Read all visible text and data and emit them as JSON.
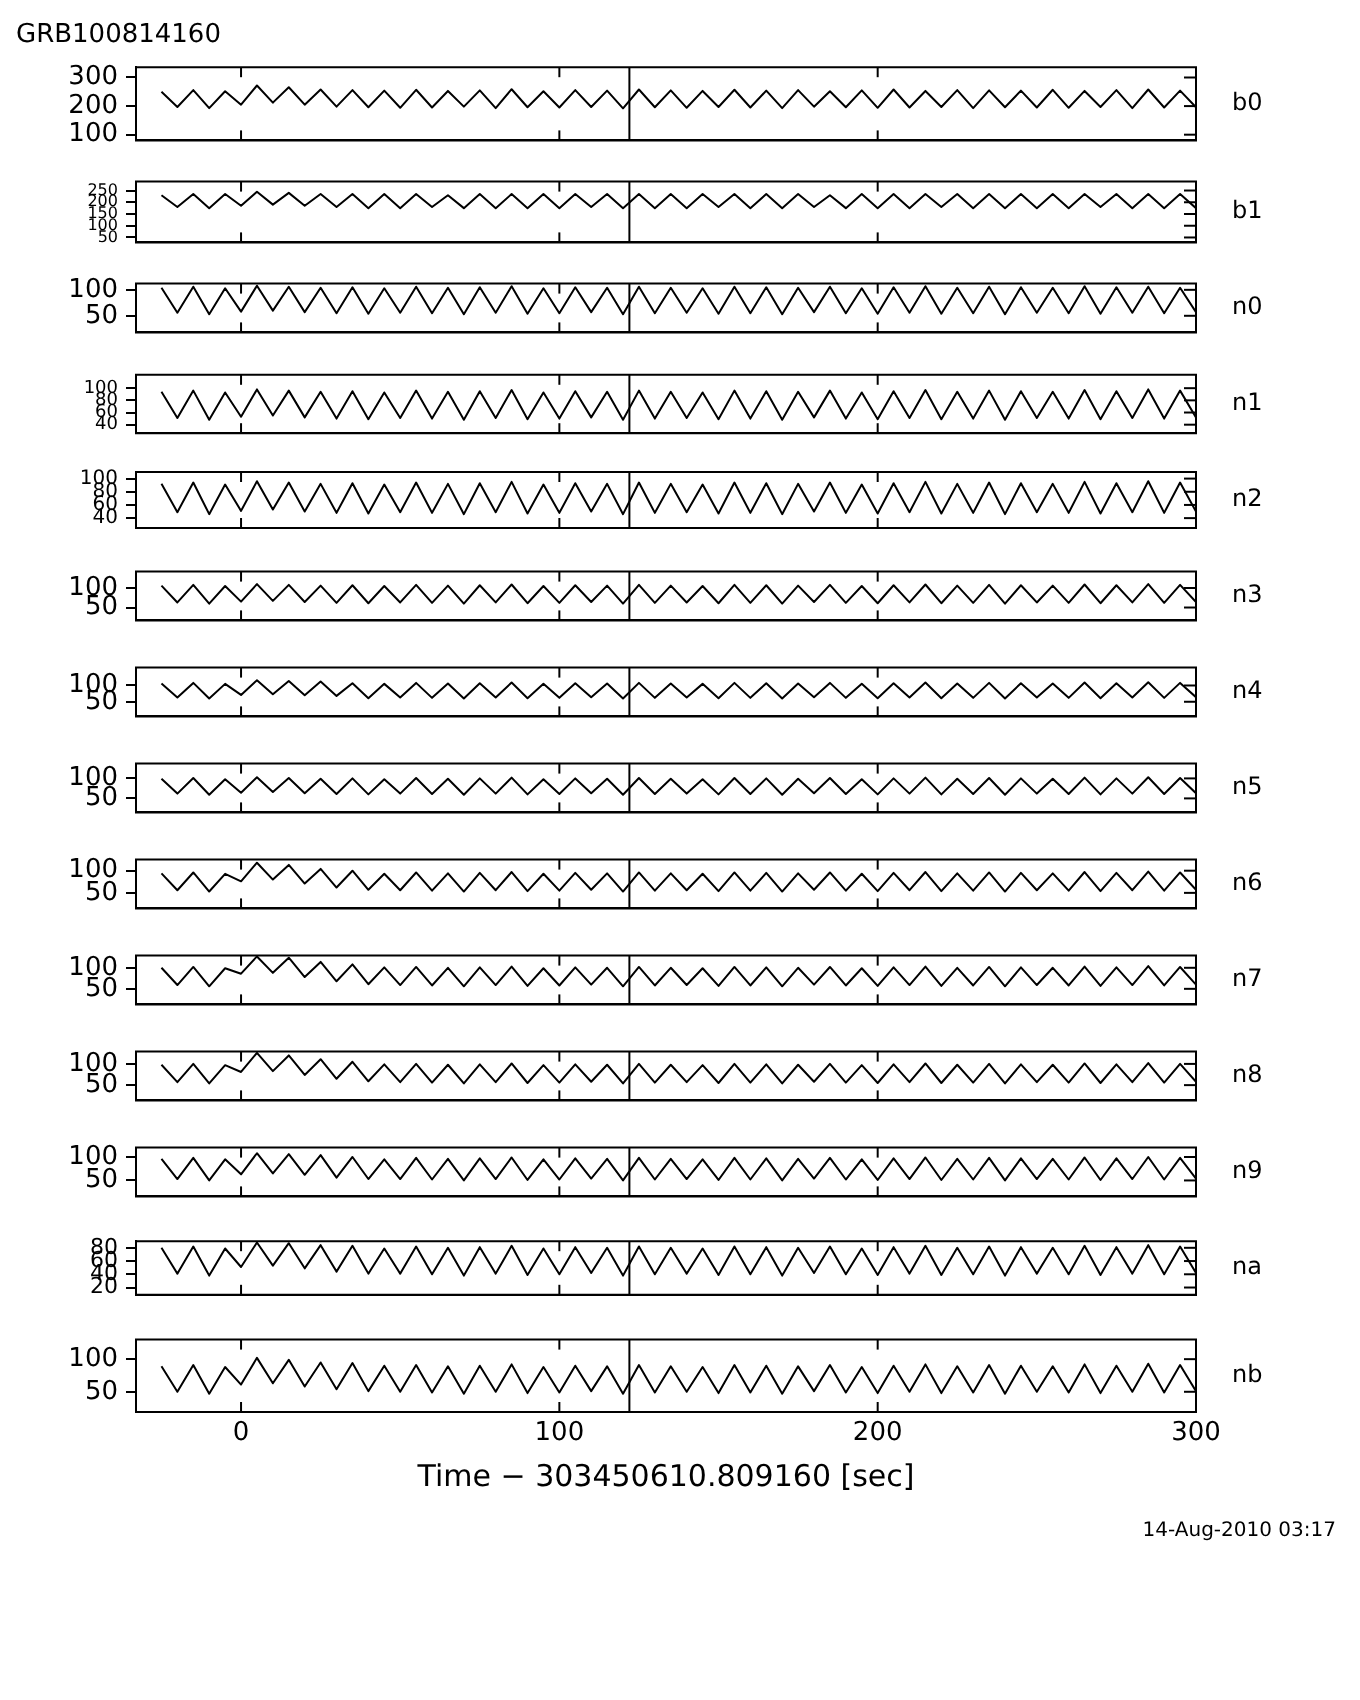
{
  "chart_data": [
    {
      "type": "line",
      "title": "GRB100814160",
      "x": [
        -25,
        -20,
        -15,
        -10,
        -5,
        0,
        5,
        10,
        15,
        20,
        25,
        30,
        35,
        40,
        45,
        50,
        55,
        60,
        65,
        70,
        75,
        80,
        85,
        90,
        95,
        100,
        105,
        110,
        115,
        120,
        125,
        130,
        135,
        140,
        145,
        150,
        155,
        160,
        165,
        170,
        175,
        180,
        185,
        190,
        195,
        200,
        205,
        210,
        215,
        220,
        225,
        230,
        235,
        240,
        245,
        250,
        255,
        260,
        265,
        270,
        275,
        280,
        285,
        290,
        295,
        300
      ],
      "xlim": [
        -33,
        300
      ],
      "xticks": [
        0,
        100,
        200,
        300
      ],
      "ylim": [
        80,
        336
      ],
      "yticks": [
        100,
        200,
        300
      ],
      "tick_labels": "y",
      "grid": false,
      "legend": "right",
      "marker": "none",
      "ref_lines": [
        {
          "axis": "x",
          "value": 122
        }
      ],
      "series": [
        {
          "name": "b0",
          "color": "#000000",
          "values": [
            250,
            197,
            256,
            193,
            252,
            205,
            272,
            212,
            266,
            205,
            258,
            198,
            256,
            196,
            254,
            194,
            257,
            195,
            253,
            198,
            255,
            193,
            259,
            196,
            252,
            195,
            256,
            197,
            254,
            192,
            258,
            196,
            255,
            194,
            253,
            197,
            257,
            195,
            254,
            193,
            256,
            198,
            252,
            196,
            255,
            194,
            258,
            195,
            253,
            197,
            256,
            193,
            255,
            196,
            254,
            195,
            257,
            194,
            253,
            197,
            256,
            193,
            258,
            195,
            254,
            196
          ]
        }
      ]
    },
    {
      "type": "line",
      "x": [
        -25,
        -20,
        -15,
        -10,
        -5,
        0,
        5,
        10,
        15,
        20,
        25,
        30,
        35,
        40,
        45,
        50,
        55,
        60,
        65,
        70,
        75,
        80,
        85,
        90,
        95,
        100,
        105,
        110,
        115,
        120,
        125,
        130,
        135,
        140,
        145,
        150,
        155,
        160,
        165,
        170,
        175,
        180,
        185,
        190,
        195,
        200,
        205,
        210,
        215,
        220,
        225,
        230,
        235,
        240,
        245,
        250,
        255,
        260,
        265,
        270,
        275,
        280,
        285,
        290,
        295,
        300
      ],
      "xlim": [
        -33,
        300
      ],
      "xticks": [
        0,
        100,
        200,
        300
      ],
      "ylim": [
        29,
        288
      ],
      "yticks": [
        50,
        100,
        150,
        200,
        250
      ],
      "tick_labels": "y",
      "grid": false,
      "legend": "right",
      "marker": "none",
      "ref_lines": [
        {
          "axis": "x",
          "value": 122
        }
      ],
      "series": [
        {
          "name": "b1",
          "color": "#000000",
          "values": [
            230,
            180,
            235,
            175,
            235,
            185,
            245,
            190,
            240,
            185,
            235,
            180,
            235,
            175,
            235,
            175,
            235,
            180,
            230,
            175,
            235,
            175,
            235,
            175,
            235,
            175,
            235,
            180,
            235,
            175,
            235,
            175,
            235,
            175,
            235,
            180,
            235,
            175,
            235,
            175,
            235,
            180,
            230,
            175,
            235,
            175,
            235,
            175,
            235,
            180,
            235,
            175,
            235,
            175,
            235,
            175,
            235,
            175,
            235,
            180,
            235,
            175,
            235,
            175,
            235,
            175
          ]
        }
      ]
    },
    {
      "type": "line",
      "x": [
        -25,
        -20,
        -15,
        -10,
        -5,
        0,
        5,
        10,
        15,
        20,
        25,
        30,
        35,
        40,
        45,
        50,
        55,
        60,
        65,
        70,
        75,
        80,
        85,
        90,
        95,
        100,
        105,
        110,
        115,
        120,
        125,
        130,
        135,
        140,
        145,
        150,
        155,
        160,
        165,
        170,
        175,
        180,
        185,
        190,
        195,
        200,
        205,
        210,
        215,
        220,
        225,
        230,
        235,
        240,
        245,
        250,
        255,
        260,
        265,
        270,
        275,
        280,
        285,
        290,
        295,
        300
      ],
      "xlim": [
        -33,
        300
      ],
      "xticks": [
        0,
        100,
        200,
        300
      ],
      "ylim": [
        18,
        112
      ],
      "yticks": [
        50,
        100
      ],
      "tick_labels": "y",
      "grid": false,
      "legend": "right",
      "marker": "none",
      "ref_lines": [
        {
          "axis": "x",
          "value": 122
        }
      ],
      "series": [
        {
          "name": "n0",
          "color": "#000000",
          "values": [
            104,
            56,
            106,
            53,
            103,
            58,
            108,
            60,
            106,
            57,
            104,
            55,
            105,
            54,
            103,
            56,
            106,
            55,
            104,
            53,
            105,
            56,
            107,
            54,
            103,
            55,
            105,
            57,
            104,
            53,
            106,
            55,
            104,
            56,
            103,
            54,
            106,
            55,
            105,
            53,
            104,
            57,
            106,
            55,
            103,
            54,
            105,
            56,
            107,
            54,
            104,
            55,
            106,
            53,
            105,
            56,
            104,
            55,
            107,
            54,
            105,
            56,
            106,
            55,
            104,
            57
          ]
        }
      ]
    },
    {
      "type": "line",
      "x": [
        -25,
        -20,
        -15,
        -10,
        -5,
        0,
        5,
        10,
        15,
        20,
        25,
        30,
        35,
        40,
        45,
        50,
        55,
        60,
        65,
        70,
        75,
        80,
        85,
        90,
        95,
        100,
        105,
        110,
        115,
        120,
        125,
        130,
        135,
        140,
        145,
        150,
        155,
        160,
        165,
        170,
        175,
        180,
        185,
        190,
        195,
        200,
        205,
        210,
        215,
        220,
        225,
        230,
        235,
        240,
        245,
        250,
        255,
        260,
        265,
        270,
        275,
        280,
        285,
        290,
        295,
        300
      ],
      "xlim": [
        -33,
        300
      ],
      "xticks": [
        0,
        100,
        200,
        300
      ],
      "ylim": [
        26,
        122
      ],
      "yticks": [
        40,
        60,
        80,
        100
      ],
      "tick_labels": "y",
      "grid": false,
      "legend": "right",
      "marker": "none",
      "ref_lines": [
        {
          "axis": "x",
          "value": 122
        }
      ],
      "series": [
        {
          "name": "n1",
          "color": "#000000",
          "values": [
            94,
            51,
            96,
            48,
            93,
            53,
            98,
            55,
            96,
            52,
            94,
            50,
            95,
            49,
            93,
            51,
            96,
            50,
            94,
            48,
            95,
            51,
            97,
            49,
            93,
            50,
            95,
            52,
            94,
            48,
            96,
            50,
            94,
            51,
            93,
            49,
            96,
            50,
            95,
            48,
            94,
            52,
            96,
            50,
            93,
            49,
            95,
            51,
            97,
            49,
            94,
            50,
            96,
            48,
            95,
            51,
            94,
            50,
            97,
            49,
            95,
            51,
            98,
            50,
            96,
            52
          ]
        }
      ]
    },
    {
      "type": "line",
      "x": [
        -25,
        -20,
        -15,
        -10,
        -5,
        0,
        5,
        10,
        15,
        20,
        25,
        30,
        35,
        40,
        45,
        50,
        55,
        60,
        65,
        70,
        75,
        80,
        85,
        90,
        95,
        100,
        105,
        110,
        115,
        120,
        125,
        130,
        135,
        140,
        145,
        150,
        155,
        160,
        165,
        170,
        175,
        180,
        185,
        190,
        195,
        200,
        205,
        210,
        215,
        220,
        225,
        230,
        235,
        240,
        245,
        250,
        255,
        260,
        265,
        270,
        275,
        280,
        285,
        290,
        295,
        300
      ],
      "xlim": [
        -33,
        300
      ],
      "xticks": [
        0,
        100,
        200,
        300
      ],
      "ylim": [
        25,
        110
      ],
      "yticks": [
        40,
        60,
        80,
        100
      ],
      "tick_labels": "y",
      "grid": false,
      "legend": "right",
      "marker": "none",
      "ref_lines": [
        {
          "axis": "x",
          "value": 122
        }
      ],
      "series": [
        {
          "name": "n2",
          "color": "#000000",
          "values": [
            92,
            49,
            94,
            46,
            91,
            51,
            96,
            53,
            94,
            50,
            92,
            48,
            93,
            47,
            91,
            49,
            94,
            48,
            92,
            46,
            93,
            49,
            95,
            47,
            91,
            48,
            93,
            50,
            92,
            46,
            94,
            48,
            92,
            49,
            91,
            47,
            94,
            48,
            93,
            46,
            92,
            50,
            94,
            48,
            91,
            47,
            93,
            49,
            95,
            47,
            92,
            48,
            94,
            46,
            93,
            49,
            92,
            48,
            95,
            47,
            93,
            49,
            96,
            48,
            94,
            50
          ]
        }
      ]
    },
    {
      "type": "line",
      "x": [
        -25,
        -20,
        -15,
        -10,
        -5,
        0,
        5,
        10,
        15,
        20,
        25,
        30,
        35,
        40,
        45,
        50,
        55,
        60,
        65,
        70,
        75,
        80,
        85,
        90,
        95,
        100,
        105,
        110,
        115,
        120,
        125,
        130,
        135,
        140,
        145,
        150,
        155,
        160,
        165,
        170,
        175,
        180,
        185,
        190,
        195,
        200,
        205,
        210,
        215,
        220,
        225,
        230,
        235,
        240,
        245,
        250,
        255,
        260,
        265,
        270,
        275,
        280,
        285,
        290,
        295,
        300
      ],
      "xlim": [
        -33,
        300
      ],
      "xticks": [
        0,
        100,
        200,
        300
      ],
      "ylim": [
        17,
        142
      ],
      "yticks": [
        50,
        100
      ],
      "tick_labels": "y",
      "grid": false,
      "legend": "right",
      "marker": "none",
      "ref_lines": [
        {
          "axis": "x",
          "value": 122
        }
      ],
      "series": [
        {
          "name": "n3",
          "color": "#000000",
          "values": [
            106,
            63,
            108,
            60,
            105,
            65,
            110,
            67,
            108,
            64,
            106,
            62,
            107,
            61,
            105,
            63,
            108,
            62,
            106,
            60,
            107,
            63,
            109,
            61,
            105,
            62,
            107,
            64,
            106,
            60,
            108,
            62,
            106,
            63,
            105,
            61,
            108,
            62,
            107,
            60,
            106,
            64,
            108,
            62,
            105,
            61,
            107,
            63,
            109,
            61,
            106,
            62,
            108,
            60,
            107,
            63,
            106,
            62,
            109,
            61,
            107,
            63,
            110,
            62,
            108,
            64
          ]
        }
      ]
    },
    {
      "type": "line",
      "x": [
        -25,
        -20,
        -15,
        -10,
        -5,
        0,
        5,
        10,
        15,
        20,
        25,
        30,
        35,
        40,
        45,
        50,
        55,
        60,
        65,
        70,
        75,
        80,
        85,
        90,
        95,
        100,
        105,
        110,
        115,
        120,
        125,
        130,
        135,
        140,
        145,
        150,
        155,
        160,
        165,
        170,
        175,
        180,
        185,
        190,
        195,
        200,
        205,
        210,
        215,
        220,
        225,
        230,
        235,
        240,
        245,
        250,
        255,
        260,
        265,
        270,
        275,
        280,
        285,
        290,
        295,
        300
      ],
      "xlim": [
        -33,
        300
      ],
      "xticks": [
        0,
        100,
        200,
        300
      ],
      "ylim": [
        5,
        155
      ],
      "yticks": [
        50,
        100
      ],
      "tick_labels": "y",
      "grid": false,
      "legend": "right",
      "marker": "none",
      "ref_lines": [
        {
          "axis": "x",
          "value": 122
        }
      ],
      "series": [
        {
          "name": "n4",
          "color": "#000000",
          "values": [
            106,
            63,
            108,
            60,
            105,
            71,
            116,
            73,
            114,
            70,
            112,
            68,
            107,
            61,
            105,
            63,
            108,
            62,
            106,
            60,
            107,
            63,
            109,
            61,
            105,
            62,
            107,
            64,
            106,
            60,
            108,
            62,
            106,
            63,
            105,
            61,
            108,
            62,
            107,
            60,
            106,
            64,
            108,
            62,
            105,
            61,
            107,
            63,
            109,
            61,
            106,
            62,
            108,
            60,
            107,
            63,
            106,
            62,
            109,
            61,
            107,
            63,
            110,
            62,
            108,
            64
          ]
        }
      ]
    },
    {
      "type": "line",
      "x": [
        -25,
        -20,
        -15,
        -10,
        -5,
        0,
        5,
        10,
        15,
        20,
        25,
        30,
        35,
        40,
        45,
        50,
        55,
        60,
        65,
        70,
        75,
        80,
        85,
        90,
        95,
        100,
        105,
        110,
        115,
        120,
        125,
        130,
        135,
        140,
        145,
        150,
        155,
        160,
        165,
        170,
        175,
        180,
        185,
        190,
        195,
        200,
        205,
        210,
        215,
        220,
        225,
        230,
        235,
        240,
        245,
        250,
        255,
        260,
        265,
        270,
        275,
        280,
        285,
        290,
        295,
        300
      ],
      "xlim": [
        -33,
        300
      ],
      "xticks": [
        0,
        100,
        200,
        300
      ],
      "ylim": [
        15,
        137
      ],
      "yticks": [
        50,
        100
      ],
      "tick_labels": "y",
      "grid": false,
      "legend": "right",
      "marker": "none",
      "ref_lines": [
        {
          "axis": "x",
          "value": 122
        }
      ],
      "series": [
        {
          "name": "n5",
          "color": "#000000",
          "values": [
            99,
            62,
            101,
            59,
            98,
            64,
            103,
            66,
            101,
            63,
            99,
            61,
            100,
            60,
            98,
            62,
            101,
            61,
            99,
            59,
            100,
            62,
            102,
            60,
            98,
            61,
            100,
            63,
            99,
            59,
            101,
            61,
            99,
            62,
            98,
            60,
            101,
            61,
            100,
            59,
            99,
            63,
            101,
            61,
            98,
            60,
            100,
            62,
            102,
            60,
            99,
            61,
            101,
            59,
            100,
            62,
            99,
            61,
            102,
            60,
            100,
            62,
            103,
            61,
            101,
            63
          ]
        }
      ]
    },
    {
      "type": "line",
      "x": [
        -25,
        -20,
        -15,
        -10,
        -5,
        0,
        5,
        10,
        15,
        20,
        25,
        30,
        35,
        40,
        45,
        50,
        55,
        60,
        65,
        70,
        75,
        80,
        85,
        90,
        95,
        100,
        105,
        110,
        115,
        120,
        125,
        130,
        135,
        140,
        145,
        150,
        155,
        160,
        165,
        170,
        175,
        180,
        185,
        190,
        195,
        200,
        205,
        210,
        215,
        220,
        225,
        230,
        235,
        240,
        245,
        250,
        255,
        260,
        265,
        270,
        275,
        280,
        285,
        290,
        295,
        300
      ],
      "xlim": [
        -33,
        300
      ],
      "xticks": [
        0,
        100,
        200,
        300
      ],
      "ylim": [
        15,
        125
      ],
      "yticks": [
        50,
        100
      ],
      "tick_labels": "y",
      "grid": false,
      "legend": "right",
      "marker": "none",
      "ref_lines": [
        {
          "axis": "x",
          "value": 122
        }
      ],
      "series": [
        {
          "name": "n6",
          "color": "#000000",
          "values": [
            94,
            56,
            96,
            53,
            93,
            76,
            118,
            80,
            113,
            71,
            104,
            62,
            100,
            57,
            93,
            56,
            96,
            55,
            94,
            53,
            95,
            56,
            97,
            54,
            93,
            55,
            95,
            57,
            94,
            53,
            96,
            55,
            94,
            56,
            93,
            54,
            96,
            55,
            95,
            53,
            94,
            57,
            96,
            55,
            93,
            54,
            95,
            56,
            97,
            54,
            94,
            55,
            96,
            53,
            95,
            56,
            94,
            55,
            97,
            54,
            95,
            56,
            98,
            55,
            96,
            57
          ]
        }
      ]
    },
    {
      "type": "line",
      "x": [
        -25,
        -20,
        -15,
        -10,
        -5,
        0,
        5,
        10,
        15,
        20,
        25,
        30,
        35,
        40,
        45,
        50,
        55,
        60,
        65,
        70,
        75,
        80,
        85,
        90,
        95,
        100,
        105,
        110,
        115,
        120,
        125,
        130,
        135,
        140,
        145,
        150,
        155,
        160,
        165,
        170,
        175,
        180,
        185,
        190,
        195,
        200,
        205,
        210,
        215,
        220,
        225,
        230,
        235,
        240,
        245,
        250,
        255,
        260,
        265,
        270,
        275,
        280,
        285,
        290,
        295,
        300
      ],
      "xlim": [
        -33,
        300
      ],
      "xticks": [
        0,
        100,
        200,
        300
      ],
      "ylim": [
        13,
        129
      ],
      "yticks": [
        50,
        100
      ],
      "tick_labels": "y",
      "grid": false,
      "legend": "right",
      "marker": "none",
      "ref_lines": [
        {
          "axis": "x",
          "value": 122
        }
      ],
      "series": [
        {
          "name": "n7",
          "color": "#000000",
          "values": [
            100,
            59,
            102,
            56,
            99,
            86,
            127,
            88,
            124,
            78,
            114,
            68,
            108,
            61,
            101,
            59,
            102,
            58,
            100,
            56,
            101,
            59,
            103,
            57,
            99,
            58,
            101,
            60,
            100,
            56,
            102,
            58,
            100,
            59,
            99,
            57,
            102,
            58,
            101,
            56,
            100,
            60,
            102,
            58,
            99,
            57,
            101,
            59,
            103,
            57,
            100,
            58,
            102,
            56,
            101,
            59,
            100,
            58,
            103,
            57,
            101,
            59,
            104,
            58,
            102,
            60
          ]
        }
      ]
    },
    {
      "type": "line",
      "x": [
        -25,
        -20,
        -15,
        -10,
        -5,
        0,
        5,
        10,
        15,
        20,
        25,
        30,
        35,
        40,
        45,
        50,
        55,
        60,
        65,
        70,
        75,
        80,
        85,
        90,
        95,
        100,
        105,
        110,
        115,
        120,
        125,
        130,
        135,
        140,
        145,
        150,
        155,
        160,
        165,
        170,
        175,
        180,
        185,
        190,
        195,
        200,
        205,
        210,
        215,
        220,
        225,
        230,
        235,
        240,
        245,
        250,
        255,
        260,
        265,
        270,
        275,
        280,
        285,
        290,
        295,
        300
      ],
      "xlim": [
        -33,
        300
      ],
      "xticks": [
        0,
        100,
        200,
        300
      ],
      "ylim": [
        14,
        129
      ],
      "yticks": [
        50,
        100
      ],
      "tick_labels": "y",
      "grid": false,
      "legend": "right",
      "marker": "none",
      "ref_lines": [
        {
          "axis": "x",
          "value": 122
        }
      ],
      "series": [
        {
          "name": "n8",
          "color": "#000000",
          "values": [
            98,
            57,
            100,
            54,
            97,
            81,
            126,
            83,
            120,
            74,
            111,
            65,
            105,
            59,
            99,
            57,
            100,
            56,
            98,
            54,
            99,
            57,
            101,
            55,
            97,
            56,
            99,
            58,
            98,
            54,
            100,
            56,
            98,
            57,
            97,
            55,
            100,
            56,
            99,
            54,
            98,
            58,
            100,
            56,
            97,
            55,
            99,
            57,
            101,
            55,
            98,
            56,
            100,
            54,
            99,
            57,
            98,
            56,
            101,
            55,
            99,
            57,
            102,
            56,
            100,
            58
          ]
        }
      ]
    },
    {
      "type": "line",
      "x": [
        -25,
        -20,
        -15,
        -10,
        -5,
        0,
        5,
        10,
        15,
        20,
        25,
        30,
        35,
        40,
        45,
        50,
        55,
        60,
        65,
        70,
        75,
        80,
        85,
        90,
        95,
        100,
        105,
        110,
        115,
        120,
        125,
        130,
        135,
        140,
        145,
        150,
        155,
        160,
        165,
        170,
        175,
        180,
        185,
        190,
        195,
        200,
        205,
        210,
        215,
        220,
        225,
        230,
        235,
        240,
        245,
        250,
        255,
        260,
        265,
        270,
        275,
        280,
        285,
        290,
        295,
        300
      ],
      "xlim": [
        -33,
        300
      ],
      "xticks": [
        0,
        100,
        200,
        300
      ],
      "ylim": [
        16,
        120
      ],
      "yticks": [
        50,
        100
      ],
      "tick_labels": "y",
      "grid": false,
      "legend": "right",
      "marker": "none",
      "ref_lines": [
        {
          "axis": "x",
          "value": 122
        }
      ],
      "series": [
        {
          "name": "n9",
          "color": "#000000",
          "values": [
            96,
            53,
            98,
            50,
            95,
            63,
            108,
            65,
            106,
            62,
            104,
            56,
            100,
            53,
            95,
            53,
            98,
            52,
            96,
            50,
            97,
            53,
            99,
            51,
            95,
            52,
            97,
            54,
            96,
            50,
            98,
            52,
            96,
            53,
            95,
            51,
            98,
            52,
            97,
            50,
            96,
            54,
            98,
            52,
            95,
            51,
            97,
            53,
            99,
            51,
            96,
            52,
            98,
            50,
            97,
            53,
            96,
            52,
            99,
            51,
            97,
            53,
            100,
            52,
            98,
            54
          ]
        }
      ]
    },
    {
      "type": "line",
      "x": [
        -25,
        -20,
        -15,
        -10,
        -5,
        0,
        5,
        10,
        15,
        20,
        25,
        30,
        35,
        40,
        45,
        50,
        55,
        60,
        65,
        70,
        75,
        80,
        85,
        90,
        95,
        100,
        105,
        110,
        115,
        120,
        125,
        130,
        135,
        140,
        145,
        150,
        155,
        160,
        165,
        170,
        175,
        180,
        185,
        190,
        195,
        200,
        205,
        210,
        215,
        220,
        225,
        230,
        235,
        240,
        245,
        250,
        255,
        260,
        265,
        270,
        275,
        280,
        285,
        290,
        295,
        300
      ],
      "xlim": [
        -33,
        300
      ],
      "xticks": [
        0,
        100,
        200,
        300
      ],
      "ylim": [
        9,
        90
      ],
      "yticks": [
        20,
        40,
        60,
        80
      ],
      "tick_labels": "y",
      "grid": false,
      "legend": "right",
      "marker": "none",
      "ref_lines": [
        {
          "axis": "x",
          "value": 122
        }
      ],
      "series": [
        {
          "name": "na",
          "color": "#000000",
          "values": [
            80,
            41,
            82,
            38,
            79,
            51,
            88,
            53,
            87,
            49,
            84,
            44,
            83,
            41,
            79,
            41,
            82,
            40,
            80,
            38,
            81,
            41,
            83,
            39,
            79,
            40,
            81,
            42,
            80,
            38,
            82,
            40,
            80,
            41,
            79,
            39,
            82,
            40,
            81,
            38,
            80,
            42,
            82,
            40,
            79,
            39,
            81,
            41,
            83,
            39,
            80,
            40,
            82,
            38,
            81,
            41,
            80,
            40,
            83,
            39,
            81,
            41,
            84,
            40,
            82,
            42
          ]
        }
      ]
    },
    {
      "type": "line",
      "xlabel": "Time − 303450610.809160 [sec]",
      "annotations": [
        "14-Aug-2010 03:17"
      ],
      "x": [
        -25,
        -20,
        -15,
        -10,
        -5,
        0,
        5,
        10,
        15,
        20,
        25,
        30,
        35,
        40,
        45,
        50,
        55,
        60,
        65,
        70,
        75,
        80,
        85,
        90,
        95,
        100,
        105,
        110,
        115,
        120,
        125,
        130,
        135,
        140,
        145,
        150,
        155,
        160,
        165,
        170,
        175,
        180,
        185,
        190,
        195,
        200,
        205,
        210,
        215,
        220,
        225,
        230,
        235,
        240,
        245,
        250,
        255,
        260,
        265,
        270,
        275,
        280,
        285,
        290,
        295,
        300
      ],
      "xlim": [
        -33,
        300
      ],
      "xticks": [
        0,
        100,
        200,
        300
      ],
      "ylim": [
        19,
        130
      ],
      "yticks": [
        50,
        100
      ],
      "grid": false,
      "legend": "right",
      "marker": "none",
      "ref_lines": [
        {
          "axis": "x",
          "value": 122
        }
      ],
      "series": [
        {
          "name": "nb",
          "color": "#000000",
          "values": [
            89,
            50,
            91,
            47,
            88,
            61,
            102,
            63,
            99,
            58,
            95,
            54,
            94,
            51,
            90,
            50,
            91,
            49,
            89,
            47,
            90,
            50,
            92,
            48,
            88,
            49,
            90,
            51,
            89,
            47,
            91,
            49,
            89,
            50,
            88,
            48,
            91,
            49,
            90,
            47,
            89,
            51,
            91,
            49,
            88,
            48,
            90,
            50,
            92,
            48,
            89,
            49,
            91,
            47,
            90,
            50,
            89,
            49,
            92,
            48,
            90,
            50,
            93,
            49,
            91,
            51
          ]
        }
      ]
    }
  ]
}
